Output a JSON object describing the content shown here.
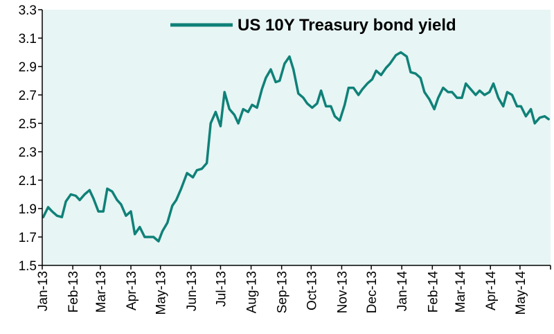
{
  "chart_data": {
    "type": "line",
    "colors": {
      "series": "#0f8178",
      "plot_background": "#e7f5f4",
      "axis": "#000000"
    },
    "ylim": [
      1.5,
      3.3
    ],
    "yticks": [
      "1.5",
      "1.7",
      "1.9",
      "2.1",
      "2.3",
      "2.5",
      "2.7",
      "2.9",
      "3.1",
      "3.3"
    ],
    "xticks": [
      "Jan-13",
      "Feb-13",
      "Mar-13",
      "Apr-13",
      "May-13",
      "Jun-13",
      "Jul-13",
      "Aug-13",
      "Sep-13",
      "Oct-13",
      "Nov-13",
      "Dec-13",
      "Jan-14",
      "Feb-14",
      "Mar-14",
      "Apr-14",
      "May-14"
    ],
    "grid": false,
    "legend": {
      "position": "top-center"
    },
    "series": [
      {
        "name": "US 10Y Treasury bond yield",
        "x": [
          "2013-01-02",
          "2013-01-07",
          "2013-01-11",
          "2013-01-16",
          "2013-01-21",
          "2013-01-25",
          "2013-01-30",
          "2013-02-04",
          "2013-02-08",
          "2013-02-13",
          "2013-02-18",
          "2013-02-22",
          "2013-02-27",
          "2013-03-04",
          "2013-03-08",
          "2013-03-13",
          "2013-03-18",
          "2013-03-22",
          "2013-03-27",
          "2013-04-01",
          "2013-04-05",
          "2013-04-10",
          "2013-04-15",
          "2013-04-19",
          "2013-04-24",
          "2013-04-29",
          "2013-05-03",
          "2013-05-08",
          "2013-05-13",
          "2013-05-17",
          "2013-05-22",
          "2013-05-28",
          "2013-06-03",
          "2013-06-07",
          "2013-06-12",
          "2013-06-17",
          "2013-06-21",
          "2013-06-26",
          "2013-07-01",
          "2013-07-05",
          "2013-07-10",
          "2013-07-15",
          "2013-07-19",
          "2013-07-24",
          "2013-07-29",
          "2013-08-02",
          "2013-08-07",
          "2013-08-12",
          "2013-08-16",
          "2013-08-21",
          "2013-08-26",
          "2013-08-30",
          "2013-09-04",
          "2013-09-09",
          "2013-09-13",
          "2013-09-18",
          "2013-09-23",
          "2013-09-27",
          "2013-10-02",
          "2013-10-07",
          "2013-10-11",
          "2013-10-16",
          "2013-10-21",
          "2013-10-25",
          "2013-10-30",
          "2013-11-04",
          "2013-11-08",
          "2013-11-13",
          "2013-11-18",
          "2013-11-22",
          "2013-11-27",
          "2013-12-02",
          "2013-12-06",
          "2013-12-11",
          "2013-12-16",
          "2013-12-20",
          "2013-12-26",
          "2013-12-31",
          "2014-01-06",
          "2014-01-10",
          "2014-01-15",
          "2014-01-20",
          "2014-01-24",
          "2014-01-29",
          "2014-02-03",
          "2014-02-07",
          "2014-02-12",
          "2014-02-17",
          "2014-02-21",
          "2014-02-26",
          "2014-03-03",
          "2014-03-07",
          "2014-03-12",
          "2014-03-17",
          "2014-03-21",
          "2014-03-26",
          "2014-03-31",
          "2014-04-04",
          "2014-04-09",
          "2014-04-14",
          "2014-04-18",
          "2014-04-23",
          "2014-04-28",
          "2014-05-02",
          "2014-05-07",
          "2014-05-12",
          "2014-05-16",
          "2014-05-21",
          "2014-05-26",
          "2014-05-30"
        ],
        "values": [
          1.84,
          1.91,
          1.88,
          1.85,
          1.84,
          1.95,
          2.0,
          1.99,
          1.96,
          2.0,
          2.03,
          1.97,
          1.88,
          1.88,
          2.04,
          2.02,
          1.96,
          1.93,
          1.85,
          1.88,
          1.72,
          1.77,
          1.7,
          1.7,
          1.7,
          1.67,
          1.74,
          1.8,
          1.92,
          1.96,
          2.04,
          2.15,
          2.12,
          2.17,
          2.18,
          2.22,
          2.5,
          2.58,
          2.48,
          2.72,
          2.6,
          2.56,
          2.5,
          2.6,
          2.58,
          2.63,
          2.61,
          2.74,
          2.82,
          2.88,
          2.79,
          2.8,
          2.92,
          2.97,
          2.88,
          2.71,
          2.68,
          2.64,
          2.61,
          2.64,
          2.73,
          2.62,
          2.62,
          2.55,
          2.52,
          2.63,
          2.75,
          2.75,
          2.7,
          2.74,
          2.78,
          2.81,
          2.87,
          2.84,
          2.89,
          2.92,
          2.98,
          3.0,
          2.97,
          2.86,
          2.85,
          2.82,
          2.72,
          2.67,
          2.6,
          2.68,
          2.75,
          2.72,
          2.72,
          2.68,
          2.68,
          2.78,
          2.74,
          2.7,
          2.73,
          2.7,
          2.72,
          2.78,
          2.68,
          2.62,
          2.72,
          2.7,
          2.62,
          2.62,
          2.55,
          2.6,
          2.5,
          2.54,
          2.55,
          2.53
        ]
      }
    ]
  }
}
